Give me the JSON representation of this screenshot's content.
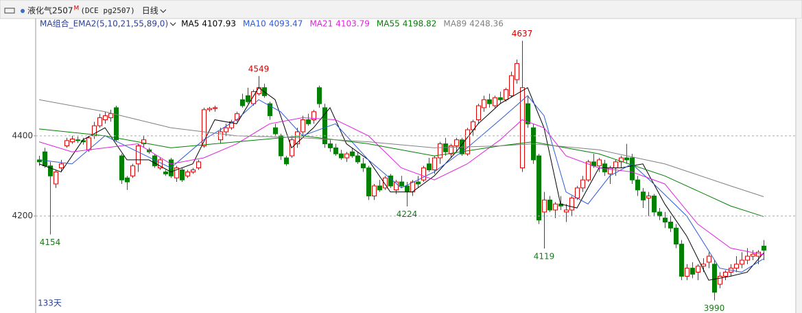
{
  "header": {
    "symbol": "液化气2507",
    "badge": "M",
    "code": "(DCE pg2507)",
    "period": "日线",
    "indicator": "MA组合_EMA2(5,10,21,55,89,0)"
  },
  "chart_data": {
    "type": "candlestick",
    "ohlc": [
      [
        4340,
        4350,
        4325,
        4335
      ],
      [
        4360,
        4370,
        4320,
        4325
      ],
      [
        4325,
        4335,
        4154,
        4300
      ],
      [
        4280,
        4315,
        4270,
        4310
      ],
      [
        4320,
        4340,
        4310,
        4330
      ],
      [
        4375,
        4395,
        4370,
        4388
      ],
      [
        4385,
        4400,
        4380,
        4392
      ],
      [
        4390,
        4398,
        4382,
        4388
      ],
      [
        4388,
        4395,
        4378,
        4385
      ],
      [
        4365,
        4400,
        4360,
        4395
      ],
      [
        4400,
        4435,
        4392,
        4425
      ],
      [
        4425,
        4455,
        4420,
        4445
      ],
      [
        4440,
        4460,
        4430,
        4450
      ],
      [
        4445,
        4465,
        4435,
        4455
      ],
      [
        4470,
        4475,
        4385,
        4390
      ],
      [
        4350,
        4355,
        4280,
        4290
      ],
      [
        4295,
        4300,
        4265,
        4285
      ],
      [
        4300,
        4330,
        4295,
        4325
      ],
      [
        4330,
        4380,
        4310,
        4375
      ],
      [
        4380,
        4400,
        4370,
        4390
      ],
      [
        4365,
        4370,
        4355,
        4360
      ],
      [
        4350,
        4355,
        4320,
        4325
      ],
      [
        4320,
        4345,
        4315,
        4340
      ],
      [
        4310,
        4315,
        4300,
        4305
      ],
      [
        4340,
        4345,
        4295,
        4300
      ],
      [
        4295,
        4325,
        4285,
        4320
      ],
      [
        4315,
        4320,
        4285,
        4290
      ],
      [
        4300,
        4315,
        4295,
        4310
      ],
      [
        4310,
        4320,
        4305,
        4315
      ],
      [
        4320,
        4340,
        4315,
        4335
      ],
      [
        4375,
        4470,
        4370,
        4465
      ],
      [
        4465,
        4472,
        4460,
        4468
      ],
      [
        4468,
        4475,
        4460,
        4470
      ],
      [
        4390,
        4420,
        4380,
        4410
      ],
      [
        4410,
        4430,
        4400,
        4420
      ],
      [
        4420,
        4440,
        4415,
        4435
      ],
      [
        4440,
        4460,
        4435,
        4455
      ],
      [
        4490,
        4505,
        4470,
        4475
      ],
      [
        4500,
        4520,
        4480,
        4485
      ],
      [
        4480,
        4515,
        4475,
        4510
      ],
      [
        4505,
        4549,
        4500,
        4520
      ],
      [
        4520,
        4530,
        4495,
        4500
      ],
      [
        4480,
        4485,
        4440,
        4450
      ],
      [
        4420,
        4430,
        4400,
        4405
      ],
      [
        4400,
        4405,
        4340,
        4350
      ],
      [
        4345,
        4350,
        4325,
        4330
      ],
      [
        4350,
        4395,
        4345,
        4390
      ],
      [
        4380,
        4420,
        4370,
        4410
      ],
      [
        4410,
        4450,
        4400,
        4440
      ],
      [
        4440,
        4455,
        4425,
        4430
      ],
      [
        4440,
        4465,
        4430,
        4460
      ],
      [
        4520,
        4525,
        4470,
        4480
      ],
      [
        4470,
        4480,
        4370,
        4380
      ],
      [
        4380,
        4390,
        4360,
        4370
      ],
      [
        4370,
        4380,
        4350,
        4355
      ],
      [
        4355,
        4365,
        4340,
        4345
      ],
      [
        4345,
        4360,
        4335,
        4355
      ],
      [
        4360,
        4370,
        4345,
        4350
      ],
      [
        4350,
        4360,
        4330,
        4335
      ],
      [
        4330,
        4345,
        4310,
        4320
      ],
      [
        4320,
        4325,
        4240,
        4250
      ],
      [
        4250,
        4280,
        4240,
        4275
      ],
      [
        4275,
        4290,
        4260,
        4265
      ],
      [
        4270,
        4300,
        4265,
        4295
      ],
      [
        4300,
        4305,
        4270,
        4275
      ],
      [
        4265,
        4290,
        4255,
        4285
      ],
      [
        4285,
        4300,
        4270,
        4275
      ],
      [
        4275,
        4285,
        4224,
        4260
      ],
      [
        4260,
        4290,
        4250,
        4285
      ],
      [
        4285,
        4300,
        4270,
        4280
      ],
      [
        4290,
        4325,
        4285,
        4320
      ],
      [
        4330,
        4345,
        4310,
        4315
      ],
      [
        4315,
        4350,
        4305,
        4345
      ],
      [
        4345,
        4385,
        4330,
        4380
      ],
      [
        4380,
        4395,
        4350,
        4360
      ],
      [
        4355,
        4380,
        4345,
        4375
      ],
      [
        4375,
        4395,
        4360,
        4390
      ],
      [
        4390,
        4395,
        4350,
        4355
      ],
      [
        4355,
        4420,
        4350,
        4415
      ],
      [
        4415,
        4440,
        4400,
        4435
      ],
      [
        4440,
        4480,
        4430,
        4475
      ],
      [
        4470,
        4500,
        4460,
        4490
      ],
      [
        4490,
        4505,
        4470,
        4480
      ],
      [
        4475,
        4500,
        4470,
        4495
      ],
      [
        4495,
        4510,
        4480,
        4490
      ],
      [
        4490,
        4520,
        4485,
        4515
      ],
      [
        4500,
        4560,
        4495,
        4550
      ],
      [
        4540,
        4590,
        4530,
        4580
      ],
      [
        4320,
        4637,
        4310,
        4520
      ],
      [
        4480,
        4500,
        4420,
        4430
      ],
      [
        4420,
        4430,
        4330,
        4340
      ],
      [
        4350,
        4355,
        4180,
        4190
      ],
      [
        4210,
        4260,
        4119,
        4240
      ],
      [
        4240,
        4250,
        4210,
        4215
      ],
      [
        4215,
        4235,
        4195,
        4230
      ],
      [
        4230,
        4250,
        4215,
        4225
      ],
      [
        4210,
        4230,
        4185,
        4215
      ],
      [
        4215,
        4250,
        4200,
        4245
      ],
      [
        4245,
        4275,
        4240,
        4270
      ],
      [
        4270,
        4300,
        4260,
        4290
      ],
      [
        4290,
        4340,
        4285,
        4335
      ],
      [
        4335,
        4355,
        4320,
        4325
      ],
      [
        4325,
        4345,
        4310,
        4340
      ],
      [
        4330,
        4340,
        4300,
        4310
      ],
      [
        4305,
        4325,
        4280,
        4320
      ],
      [
        4320,
        4340,
        4300,
        4335
      ],
      [
        4335,
        4350,
        4320,
        4345
      ],
      [
        4345,
        4380,
        4330,
        4340
      ],
      [
        4345,
        4355,
        4280,
        4290
      ],
      [
        4290,
        4300,
        4250,
        4265
      ],
      [
        4260,
        4270,
        4220,
        4240
      ],
      [
        4245,
        4260,
        4200,
        4250
      ],
      [
        4250,
        4255,
        4200,
        4210
      ],
      [
        4210,
        4220,
        4190,
        4200
      ],
      [
        4195,
        4210,
        4170,
        4185
      ],
      [
        4185,
        4200,
        4160,
        4170
      ],
      [
        4170,
        4180,
        4120,
        4130
      ],
      [
        4130,
        4140,
        4040,
        4050
      ],
      [
        4050,
        4080,
        4040,
        4070
      ],
      [
        4070,
        4085,
        4045,
        4055
      ],
      [
        4060,
        4080,
        4040,
        4075
      ],
      [
        4075,
        4095,
        4060,
        4080
      ],
      [
        4085,
        4110,
        4070,
        4100
      ],
      [
        4080,
        4090,
        3990,
        4010
      ],
      [
        4030,
        4060,
        4020,
        4050
      ],
      [
        4050,
        4065,
        4040,
        4060
      ],
      [
        4060,
        4080,
        4050,
        4070
      ],
      [
        4070,
        4100,
        4060,
        4080
      ],
      [
        4080,
        4110,
        4070,
        4090
      ],
      [
        4090,
        4120,
        4080,
        4100
      ],
      [
        4100,
        4115,
        4090,
        4105
      ],
      [
        4100,
        4115,
        4080,
        4110
      ],
      [
        4125,
        4140,
        4090,
        4115
      ]
    ],
    "up_color": "#e00000",
    "down_color": "#008000",
    "ylim": [
      3960,
      4700
    ],
    "yticks": [
      4200,
      4400
    ],
    "grid": true,
    "extreme_labels": [
      4637,
      4549,
      4154,
      4224,
      4119,
      3990
    ],
    "high_label_color": "#d00000",
    "low_label_color": "#1a7a1a",
    "series": [
      {
        "name": "MA5",
        "color": "#000000",
        "x": [
          0,
          4,
          8,
          12,
          16,
          20,
          24,
          28,
          32,
          36,
          40,
          43,
          46,
          50,
          53,
          56,
          60,
          64,
          68,
          72,
          76,
          80,
          84,
          89,
          92,
          95,
          98,
          102,
          106,
          110,
          114,
          118,
          122,
          126,
          129,
          132
        ],
        "values": [
          4330,
          4310,
          4390,
          4420,
          4340,
          4340,
          4310,
          4330,
          4440,
          4430,
          4520,
          4490,
          4370,
          4420,
          4470,
          4380,
          4340,
          4260,
          4260,
          4300,
          4360,
          4430,
          4480,
          4520,
          4420,
          4230,
          4220,
          4320,
          4320,
          4330,
          4230,
          4150,
          4040,
          4050,
          4060,
          4107.93
        ]
      },
      {
        "name": "MA10",
        "color": "#2a5bd7",
        "x": [
          0,
          6,
          12,
          18,
          24,
          30,
          36,
          40,
          44,
          48,
          54,
          60,
          66,
          72,
          78,
          84,
          89,
          92,
          96,
          100,
          104,
          108,
          112,
          118,
          124,
          128,
          132
        ],
        "values": [
          4340,
          4330,
          4400,
          4360,
          4320,
          4390,
          4440,
          4490,
          4460,
          4400,
          4430,
          4340,
          4270,
          4310,
          4370,
          4440,
          4500,
          4450,
          4260,
          4230,
          4300,
          4330,
          4280,
          4200,
          4070,
          4060,
          4093.47
        ]
      },
      {
        "name": "MA21",
        "color": "#e020e0",
        "x": [
          0,
          6,
          12,
          18,
          24,
          30,
          36,
          42,
          48,
          54,
          60,
          66,
          72,
          78,
          84,
          88,
          92,
          96,
          102,
          108,
          114,
          120,
          126,
          132
        ],
        "values": [
          4385,
          4360,
          4370,
          4380,
          4330,
          4345,
          4380,
          4430,
          4445,
          4440,
          4400,
          4320,
          4290,
          4330,
          4390,
          4440,
          4420,
          4350,
          4320,
          4310,
          4280,
          4180,
          4120,
          4103.79
        ]
      },
      {
        "name": "MA55",
        "color": "#008000",
        "x": [
          0,
          12,
          24,
          36,
          48,
          60,
          72,
          84,
          90,
          102,
          114,
          126,
          132
        ],
        "values": [
          4417,
          4400,
          4370,
          4385,
          4400,
          4380,
          4350,
          4375,
          4385,
          4355,
          4300,
          4225,
          4198.82
        ]
      },
      {
        "name": "MA89",
        "color": "#808080",
        "x": [
          0,
          12,
          24,
          36,
          48,
          60,
          72,
          84,
          90,
          102,
          114,
          126,
          132
        ],
        "values": [
          4490,
          4460,
          4420,
          4400,
          4395,
          4385,
          4370,
          4375,
          4380,
          4365,
          4330,
          4275,
          4248.36
        ]
      }
    ],
    "footer": "133天"
  }
}
